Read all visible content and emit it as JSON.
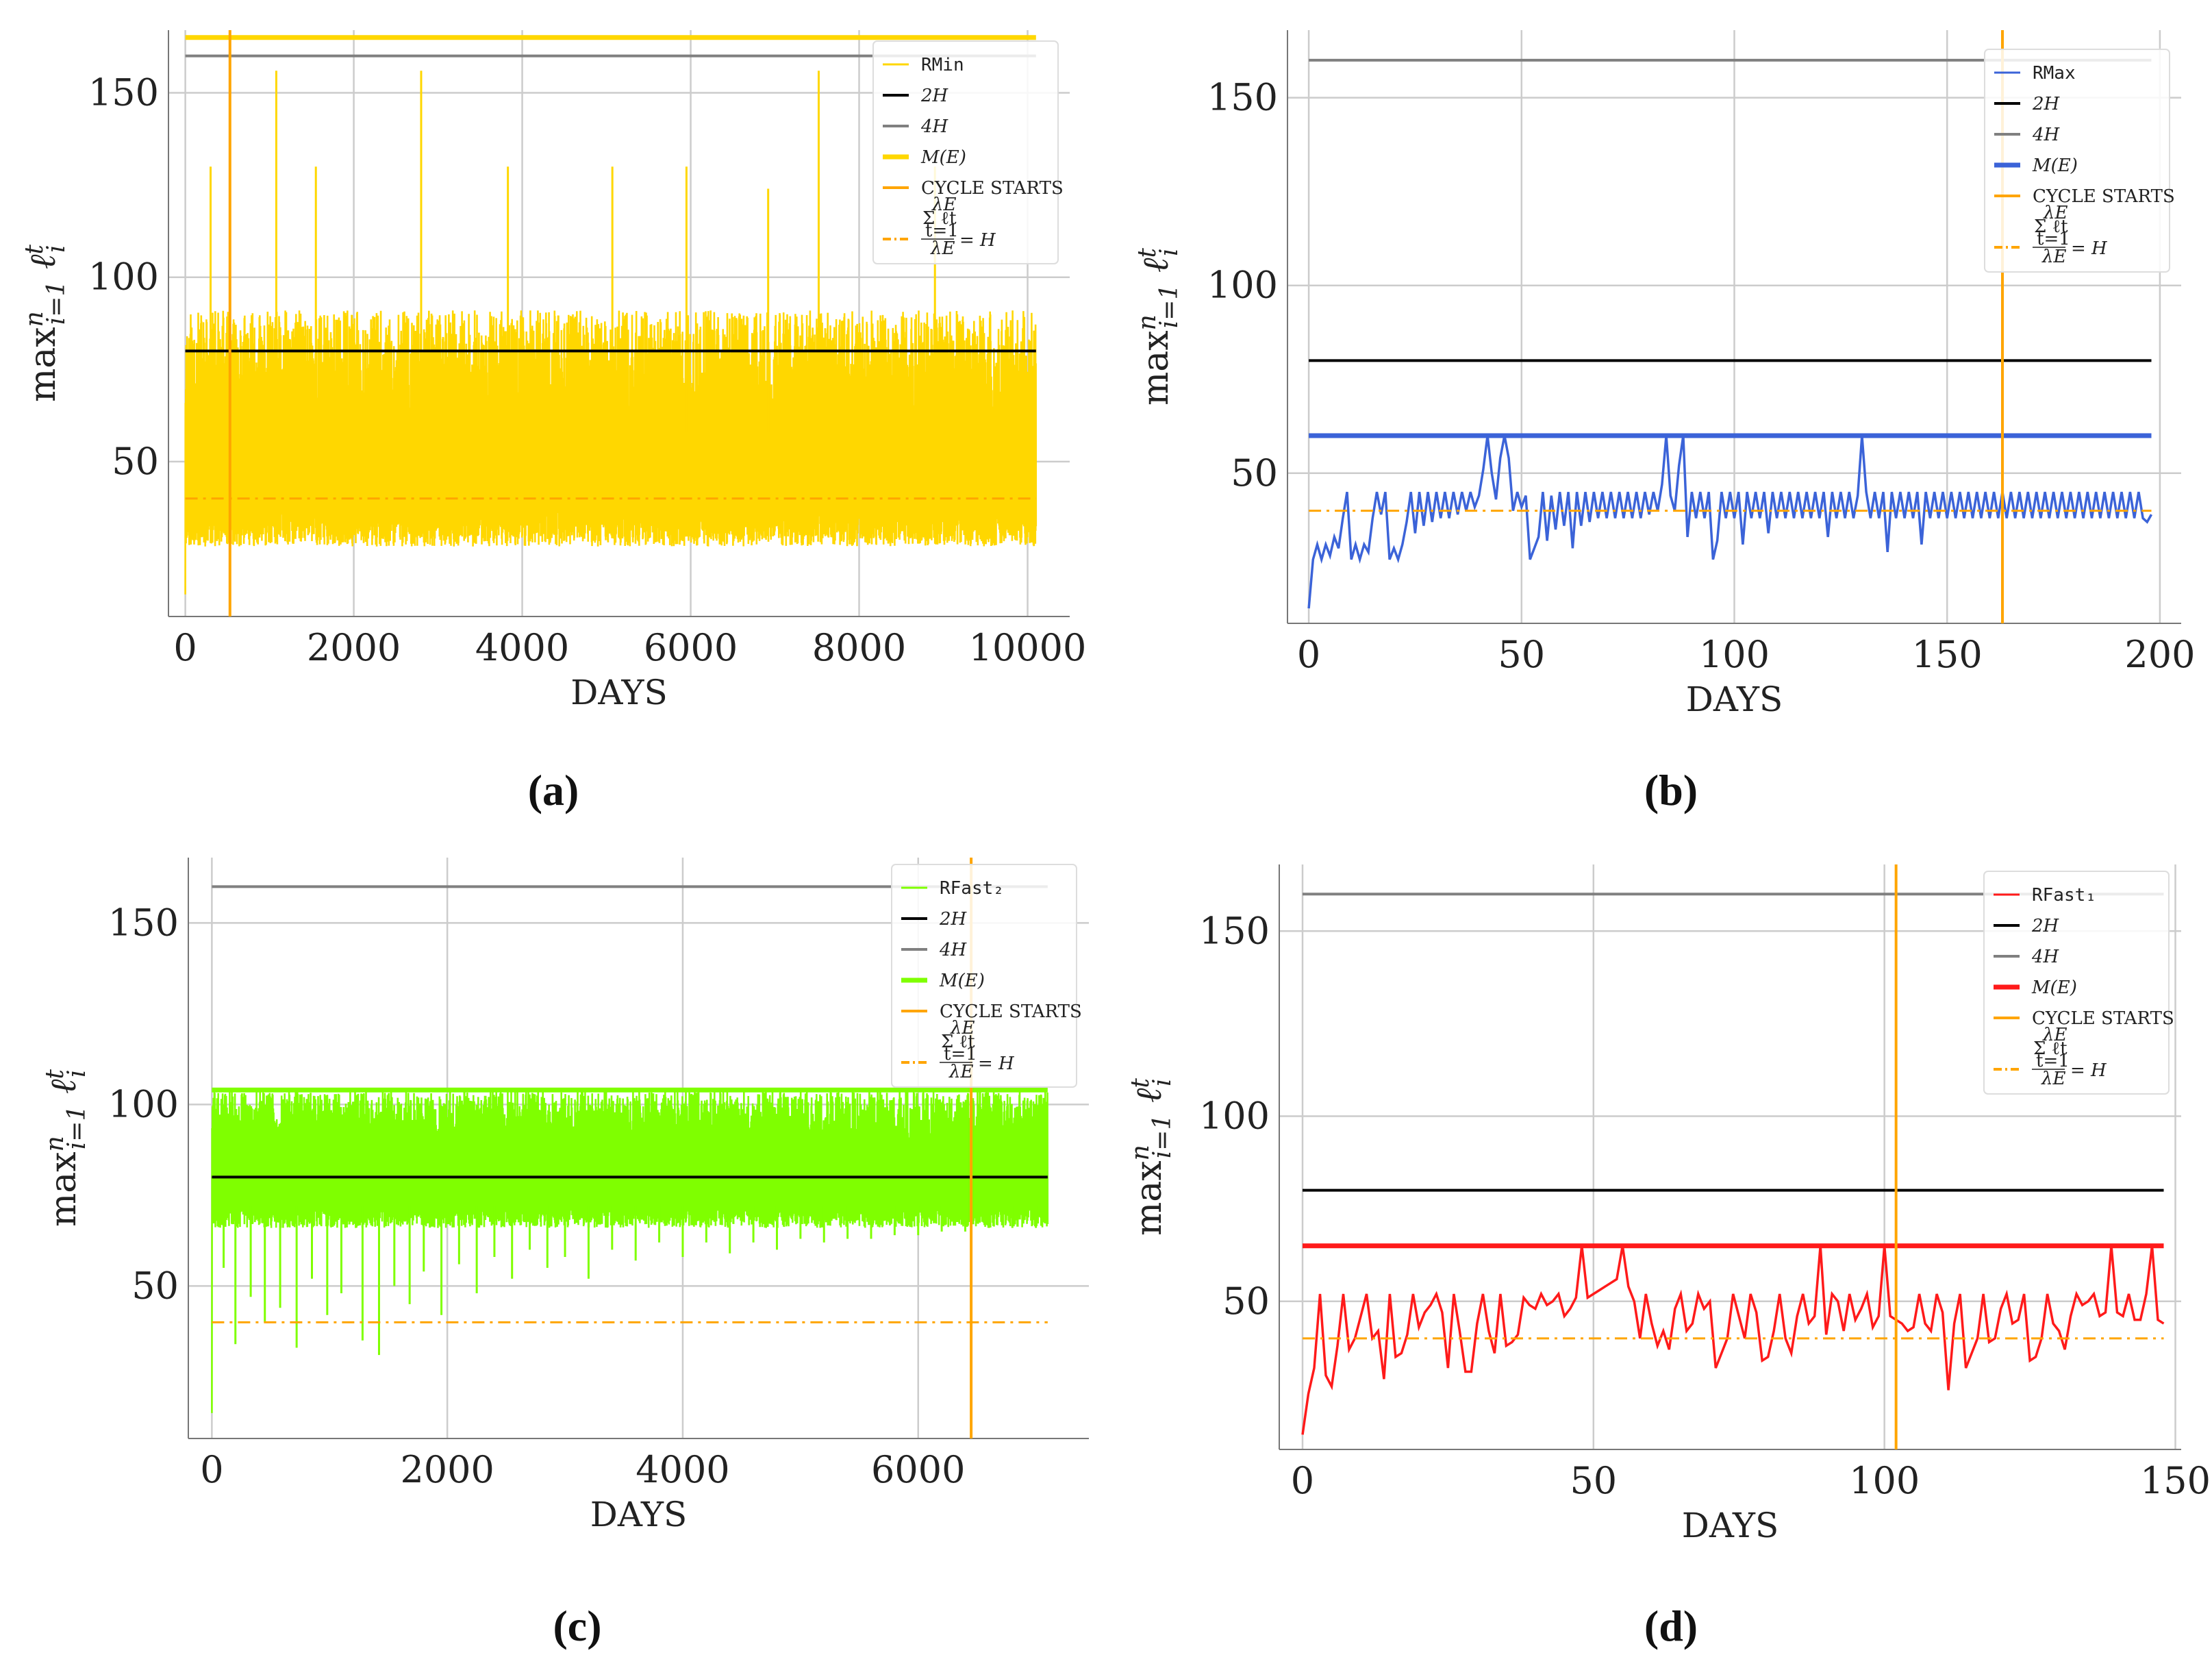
{
  "figure": {
    "xlabel": "DAYS",
    "ylabel": "max_{i=1}^{n} ℓ_i^t",
    "ylabel_main": "max",
    "ylabel_sup": "n",
    "ylabel_sub": "i=1",
    "ylabel_ell": "ℓ",
    "ylabel_ell_sup": "t",
    "ylabel_ell_sub": "i",
    "legend_common": {
      "two_h": "2H",
      "four_h": "4H",
      "m_e": "M(E)",
      "cycle": "CYCLE STARTS",
      "avg_eq": "= H",
      "avg_top": "λE",
      "avg_sum": "Σ ℓt",
      "avg_from": "t=1",
      "avg_bottom": "λE"
    },
    "colors": {
      "two_h": "#000000",
      "four_h": "#808080",
      "cycle": "#FFA500",
      "h_line": "#FFA500",
      "grid": "#CCCCCC"
    }
  },
  "chart_data": [
    {
      "id": "a",
      "caption": "(a)",
      "type": "line",
      "series_name": "RMin",
      "color": "#FFD700",
      "xlim": [
        -200,
        10500
      ],
      "ylim": [
        8,
        167
      ],
      "xticks": [
        0,
        2000,
        4000,
        6000,
        8000,
        10000
      ],
      "xtick_labels": [
        "0",
        "2000",
        "4000",
        "6000",
        "8000",
        "10000"
      ],
      "yticks": [
        50,
        100,
        150
      ],
      "ytick_labels": [
        "50",
        "100",
        "150"
      ],
      "x_end": 10100,
      "two_h": 80,
      "four_h": 160,
      "m_e": 165,
      "h_avg": 40,
      "cycle_start": 530,
      "noisy": true,
      "noise": {
        "count": 2600,
        "seed": 11,
        "low_min": 27,
        "low_max": 38,
        "high_min": 58,
        "high_max": 91,
        "spikes": [
          [
            1080,
            156
          ],
          [
            2800,
            156
          ],
          [
            7520,
            156
          ],
          [
            1550,
            130
          ],
          [
            5070,
            130
          ],
          [
            5950,
            130
          ],
          [
            8900,
            130
          ],
          [
            300,
            130
          ],
          [
            3830,
            130
          ],
          [
            6920,
            124
          ]
        ],
        "start_value": 14
      }
    },
    {
      "id": "b",
      "caption": "(b)",
      "type": "line",
      "series_name": "RMax",
      "color": "#3B63D8",
      "xlim": [
        -5,
        205
      ],
      "ylim": [
        10,
        168
      ],
      "xticks": [
        0,
        50,
        100,
        150,
        200
      ],
      "xtick_labels": [
        "0",
        "50",
        "100",
        "150",
        "200"
      ],
      "yticks": [
        50,
        100,
        150
      ],
      "yticks_labels": [
        "50",
        "100",
        "150"
      ],
      "ytick_labels": [
        "50",
        "100",
        "150"
      ],
      "x_end": 198,
      "two_h": 80,
      "four_h": 160,
      "m_e": 60,
      "h_avg": 40,
      "cycle_start": 163,
      "x": [
        0,
        1,
        2,
        3,
        4,
        5,
        6,
        7,
        8,
        9,
        10,
        11,
        12,
        13,
        14,
        15,
        16,
        17,
        18,
        19,
        20,
        21,
        22,
        23,
        24,
        25,
        26,
        27,
        28,
        29,
        30,
        31,
        32,
        33,
        34,
        35,
        36,
        37,
        38,
        39,
        40,
        41,
        42,
        43,
        44,
        45,
        46,
        47,
        48,
        49,
        50,
        51,
        52,
        53,
        54,
        55,
        56,
        57,
        58,
        59,
        60,
        61,
        62,
        63,
        64,
        65,
        66,
        67,
        68,
        69,
        70,
        71,
        72,
        73,
        74,
        75,
        76,
        77,
        78,
        79,
        80,
        81,
        82,
        83,
        84,
        85,
        86,
        87,
        88,
        89,
        90,
        91,
        92,
        93,
        94,
        95,
        96,
        97,
        98,
        99,
        100,
        101,
        102,
        103,
        104,
        105,
        106,
        107,
        108,
        109,
        110,
        111,
        112,
        113,
        114,
        115,
        116,
        117,
        118,
        119,
        120,
        121,
        122,
        123,
        124,
        125,
        126,
        127,
        128,
        129,
        130,
        131,
        132,
        133,
        134,
        135,
        136,
        137,
        138,
        139,
        140,
        141,
        142,
        143,
        144,
        145,
        146,
        147,
        148,
        149,
        150,
        151,
        152,
        153,
        154,
        155,
        156,
        157,
        158,
        159,
        160,
        161,
        162,
        163,
        164,
        165,
        166,
        167,
        168,
        169,
        170,
        171,
        172,
        173,
        174,
        175,
        176,
        177,
        178,
        179,
        180,
        181,
        182,
        183,
        184,
        185,
        186,
        187,
        188,
        189,
        190,
        191,
        192,
        193,
        194,
        195,
        196,
        197,
        198
      ],
      "y": [
        14,
        27,
        31,
        27,
        31,
        28,
        33,
        30,
        38,
        45,
        27,
        31,
        27,
        31,
        29,
        38,
        45,
        39,
        45,
        27,
        30,
        27,
        31,
        37,
        45,
        34,
        45,
        36,
        45,
        37,
        45,
        38,
        45,
        38,
        45,
        39,
        45,
        40,
        45,
        41,
        44,
        51,
        60,
        50,
        43,
        54,
        60,
        54,
        40,
        45,
        41,
        44,
        27,
        30,
        33,
        45,
        32,
        44,
        35,
        45,
        36,
        45,
        30,
        45,
        36,
        45,
        37,
        45,
        38,
        45,
        38,
        45,
        38,
        45,
        38,
        45,
        38,
        45,
        38,
        45,
        39,
        45,
        40,
        47,
        60,
        44,
        40,
        52,
        60,
        33,
        45,
        38,
        45,
        38,
        45,
        27,
        32,
        45,
        38,
        45,
        38,
        45,
        31,
        45,
        38,
        45,
        38,
        45,
        34,
        45,
        38,
        45,
        38,
        45,
        38,
        45,
        38,
        45,
        38,
        45,
        38,
        45,
        33,
        45,
        38,
        45,
        38,
        45,
        38,
        44,
        60,
        45,
        38,
        45,
        38,
        45,
        29,
        45,
        38,
        45,
        38,
        45,
        38,
        45,
        31,
        45,
        38,
        45,
        38,
        45,
        38,
        45,
        38,
        45,
        38,
        45,
        38,
        45,
        38,
        45,
        38,
        45,
        38,
        45,
        38,
        45,
        38,
        45,
        38,
        45,
        38,
        45,
        38,
        45,
        38,
        45,
        38,
        45,
        38,
        45,
        38,
        45,
        38,
        45,
        38,
        45,
        38,
        45,
        38,
        45,
        38,
        45,
        38,
        45,
        38,
        45,
        38,
        37,
        39
      ]
    },
    {
      "id": "c",
      "caption": "(c)",
      "type": "line",
      "series_name": "RFast₂",
      "color": "#7FFF00",
      "xlim": [
        -200,
        7450
      ],
      "ylim": [
        8,
        168
      ],
      "xticks": [
        0,
        2000,
        4000,
        6000
      ],
      "xtick_labels": [
        "0",
        "2000",
        "4000",
        "6000"
      ],
      "yticks": [
        50,
        100,
        150
      ],
      "ytick_labels": [
        "50",
        "100",
        "150"
      ],
      "x_end": 7100,
      "two_h": 80,
      "four_h": 160,
      "m_e": 104,
      "h_avg": 40,
      "cycle_start": 6450,
      "noisy": true,
      "noise": {
        "count": 1900,
        "seed": 29,
        "low_min": 66,
        "low_max": 72,
        "high_min": 90,
        "high_max": 104,
        "spikes": [],
        "start_value": 15,
        "dips": [
          [
            100,
            55
          ],
          [
            200,
            34
          ],
          [
            330,
            47
          ],
          [
            450,
            40
          ],
          [
            580,
            44
          ],
          [
            720,
            33
          ],
          [
            850,
            52
          ],
          [
            980,
            42
          ],
          [
            1100,
            48
          ],
          [
            1280,
            35
          ],
          [
            1420,
            31
          ],
          [
            1550,
            50
          ],
          [
            1680,
            45
          ],
          [
            1800,
            54
          ],
          [
            1950,
            42
          ],
          [
            2100,
            56
          ],
          [
            2250,
            48
          ],
          [
            2400,
            58
          ],
          [
            2550,
            52
          ],
          [
            2700,
            60
          ],
          [
            2850,
            55
          ],
          [
            3000,
            58
          ],
          [
            3200,
            52
          ],
          [
            3400,
            60
          ],
          [
            3600,
            57
          ],
          [
            3800,
            62
          ],
          [
            4000,
            58
          ],
          [
            4200,
            62
          ],
          [
            4400,
            59
          ],
          [
            4600,
            62
          ],
          [
            4800,
            60
          ],
          [
            5000,
            63
          ],
          [
            5200,
            62
          ],
          [
            5400,
            63
          ],
          [
            5600,
            63
          ],
          [
            5800,
            64
          ],
          [
            6000,
            64
          ],
          [
            6200,
            65
          ],
          [
            6400,
            65
          ],
          [
            6600,
            66
          ],
          [
            6800,
            66
          ],
          [
            7000,
            66
          ]
        ]
      }
    },
    {
      "id": "d",
      "caption": "(d)",
      "type": "line",
      "series_name": "RFast₁",
      "color": "#FF1A1A",
      "xlim": [
        -4,
        151
      ],
      "ylim": [
        10,
        168
      ],
      "xticks": [
        0,
        50,
        100,
        150
      ],
      "xtick_labels": [
        "0",
        "50",
        "100",
        "150"
      ],
      "yticks": [
        50,
        100,
        150
      ],
      "ytick_labels": [
        "50",
        "100",
        "150"
      ],
      "x_end": 148,
      "two_h": 80,
      "four_h": 160,
      "m_e": 65,
      "h_avg": 40,
      "cycle_start": 102,
      "x": [
        0,
        1,
        2,
        3,
        4,
        5,
        6,
        7,
        8,
        9,
        10,
        11,
        12,
        13,
        14,
        15,
        16,
        17,
        18,
        19,
        20,
        21,
        22,
        23,
        24,
        25,
        26,
        27,
        28,
        29,
        30,
        31,
        32,
        33,
        34,
        35,
        36,
        37,
        38,
        39,
        40,
        41,
        42,
        43,
        44,
        45,
        46,
        47,
        48,
        49,
        50,
        51,
        52,
        53,
        54,
        55,
        56,
        57,
        58,
        59,
        60,
        61,
        62,
        63,
        64,
        65,
        66,
        67,
        68,
        69,
        70,
        71,
        72,
        73,
        74,
        75,
        76,
        77,
        78,
        79,
        80,
        81,
        82,
        83,
        84,
        85,
        86,
        87,
        88,
        89,
        90,
        91,
        92,
        93,
        94,
        95,
        96,
        97,
        98,
        99,
        100,
        101,
        102,
        103,
        104,
        105,
        106,
        107,
        108,
        109,
        110,
        111,
        112,
        113,
        114,
        115,
        116,
        117,
        118,
        119,
        120,
        121,
        122,
        123,
        124,
        125,
        126,
        127,
        128,
        129,
        130,
        131,
        132,
        133,
        134,
        135,
        136,
        137,
        138,
        139,
        140,
        141,
        142,
        143,
        144,
        145,
        146,
        147,
        148
      ],
      "y": [
        14,
        25,
        32,
        52,
        30,
        27,
        38,
        52,
        37,
        40,
        46,
        52,
        40,
        42,
        29,
        52,
        35,
        36,
        41,
        52,
        43,
        47,
        49,
        52,
        47,
        32,
        52,
        42,
        31,
        31,
        44,
        52,
        42,
        36,
        52,
        38,
        39,
        41,
        51,
        49,
        48,
        52,
        49,
        50,
        52,
        46,
        48,
        51,
        65,
        51,
        52,
        53,
        54,
        55,
        56,
        65,
        54,
        50,
        40,
        52,
        44,
        38,
        42,
        37,
        48,
        52,
        42,
        44,
        52,
        48,
        50,
        32,
        36,
        40,
        52,
        46,
        40,
        52,
        47,
        34,
        35,
        42,
        52,
        40,
        36,
        46,
        52,
        44,
        46,
        65,
        41,
        52,
        50,
        42,
        52,
        45,
        48,
        52,
        43,
        46,
        65,
        46,
        45,
        44,
        42,
        43,
        52,
        44,
        42,
        52,
        47,
        26,
        44,
        52,
        32,
        36,
        40,
        52,
        39,
        40,
        48,
        52,
        44,
        45,
        52,
        34,
        35,
        40,
        52,
        44,
        42,
        37,
        46,
        52,
        49,
        50,
        52,
        46,
        47,
        65,
        47,
        46,
        52,
        45,
        45,
        52,
        65,
        45,
        44
      ]
    }
  ]
}
